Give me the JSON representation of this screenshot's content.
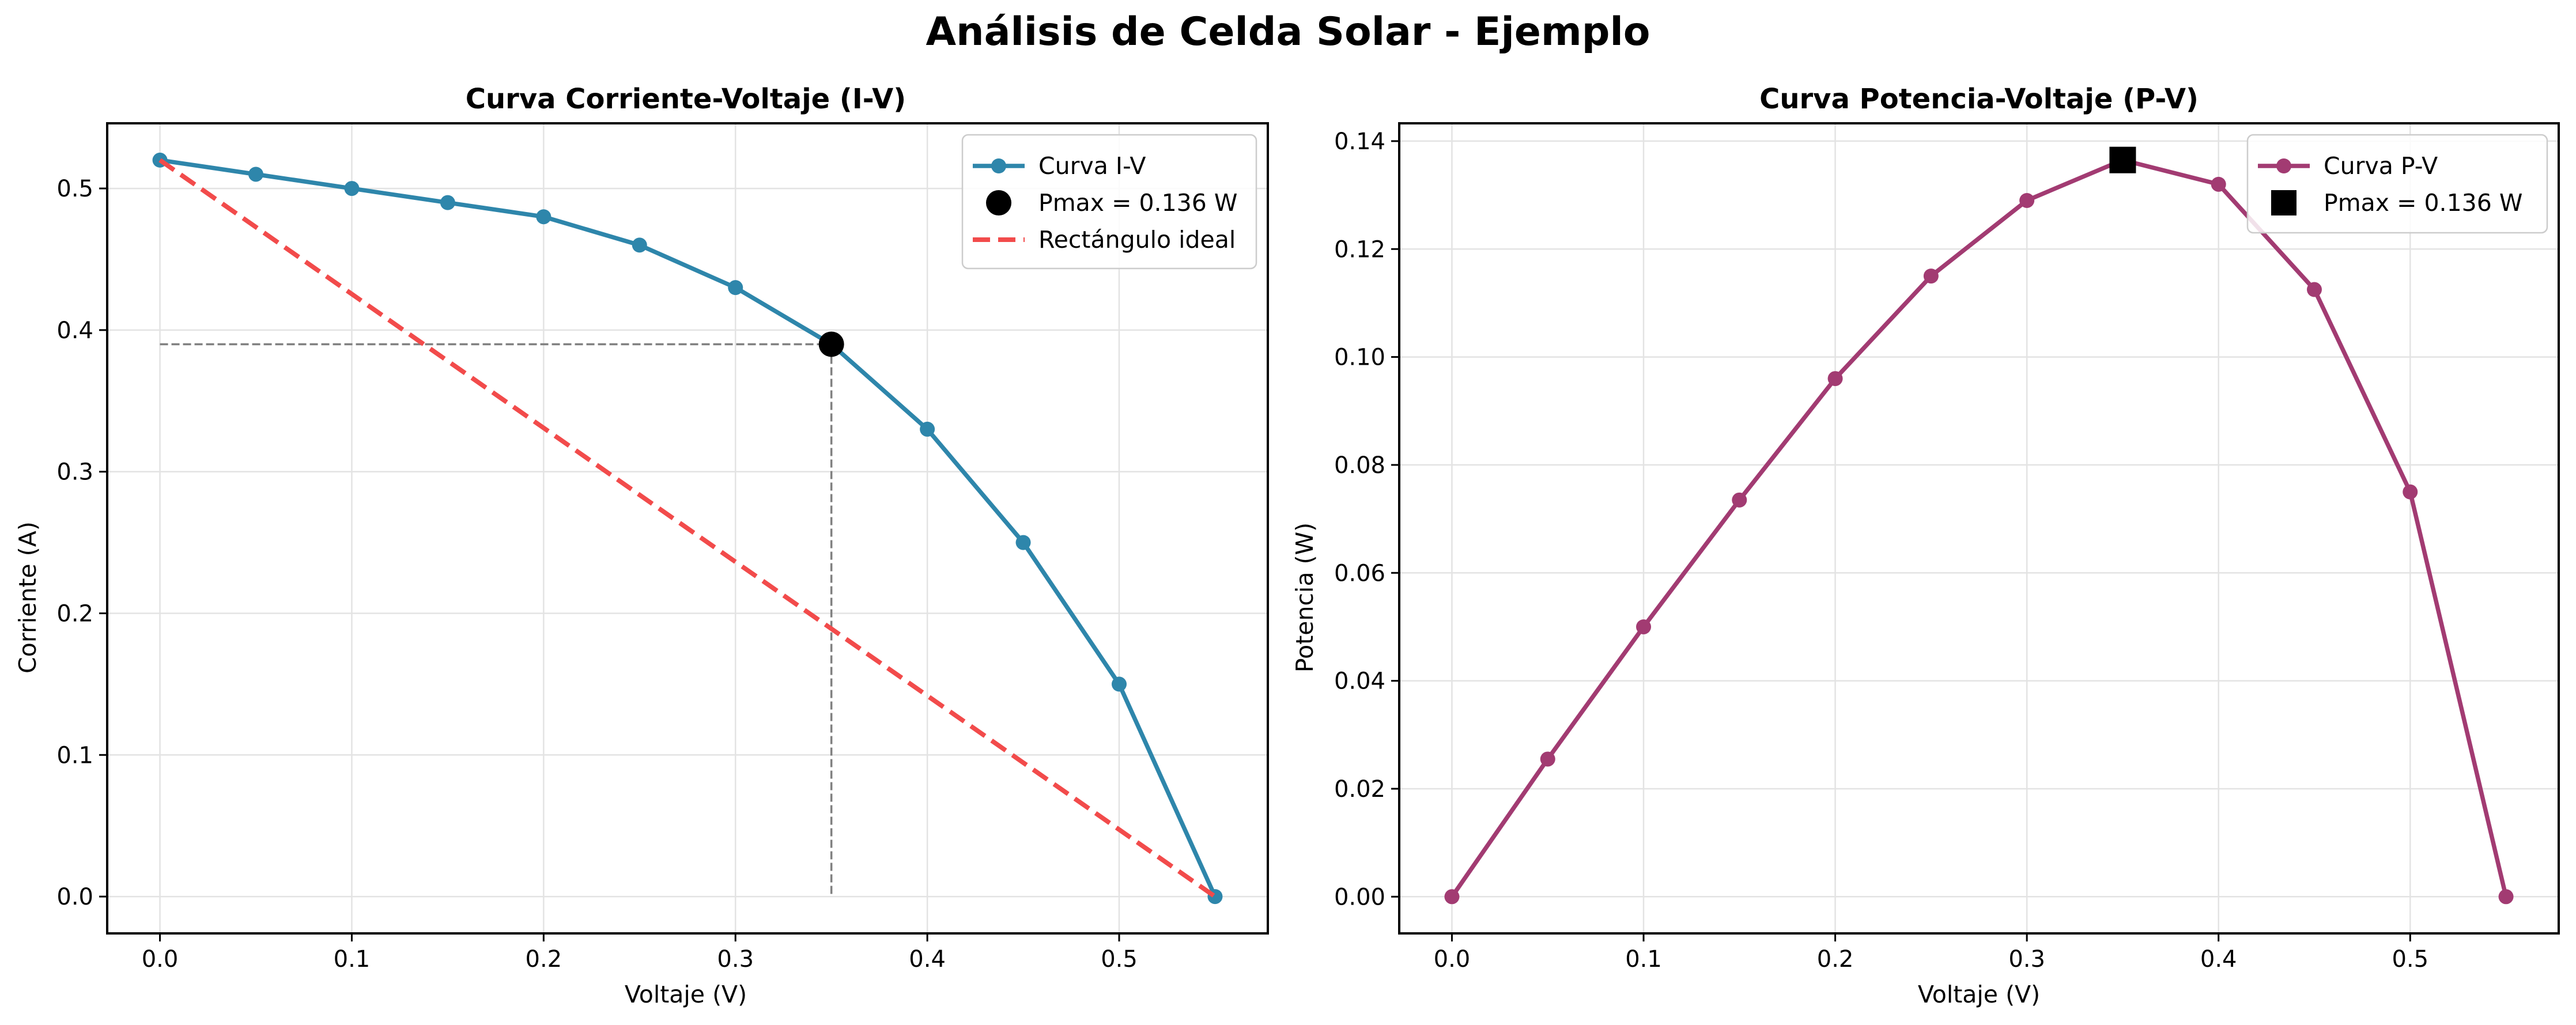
{
  "figure": {
    "title": "Análisis de Celda Solar - Ejemplo"
  },
  "chart_data": [
    {
      "type": "line",
      "title": "Curva Corriente-Voltaje (I-V)",
      "xlabel": "Voltaje (V)",
      "ylabel": "Corriente (A)",
      "xlim": [
        -0.0275,
        0.5775
      ],
      "ylim": [
        -0.026,
        0.546
      ],
      "xticks": [
        0.0,
        0.1,
        0.2,
        0.3,
        0.4,
        0.5
      ],
      "yticks": [
        0.0,
        0.1,
        0.2,
        0.3,
        0.4,
        0.5
      ],
      "grid": true,
      "legend_position": "upper right",
      "series": [
        {
          "name": "Curva I-V",
          "style": "line-marker",
          "color": "#2e86ab",
          "x": [
            0.0,
            0.05,
            0.1,
            0.15,
            0.2,
            0.25,
            0.3,
            0.35,
            0.4,
            0.45,
            0.5,
            0.55
          ],
          "y": [
            0.52,
            0.51,
            0.5,
            0.49,
            0.48,
            0.46,
            0.43,
            0.39,
            0.33,
            0.25,
            0.15,
            0.0
          ]
        },
        {
          "name": "Pmax = 0.136 W",
          "style": "point",
          "marker": "circle",
          "color": "#000000",
          "x": [
            0.35
          ],
          "y": [
            0.39
          ]
        },
        {
          "name": "Rectángulo ideal",
          "style": "dashed",
          "color": "#f24b4b",
          "x": [
            0.0,
            0.55
          ],
          "y": [
            0.52,
            0.0
          ]
        }
      ],
      "guides": [
        {
          "color": "#808080",
          "x": [
            0.0,
            0.35
          ],
          "y": [
            0.39,
            0.39
          ]
        },
        {
          "color": "#808080",
          "x": [
            0.35,
            0.35
          ],
          "y": [
            0.39,
            0.0
          ]
        }
      ]
    },
    {
      "type": "line",
      "title": "Curva Potencia-Voltaje (P-V)",
      "xlabel": "Voltaje (V)",
      "ylabel": "Potencia (W)",
      "xlim": [
        -0.0275,
        0.5775
      ],
      "ylim": [
        -0.0068,
        0.1433
      ],
      "xticks": [
        0.0,
        0.1,
        0.2,
        0.3,
        0.4,
        0.5
      ],
      "yticks": [
        0.0,
        0.02,
        0.04,
        0.06,
        0.08,
        0.1,
        0.12,
        0.14
      ],
      "ytick_decimals": 2,
      "grid": true,
      "legend_position": "upper right",
      "series": [
        {
          "name": "Curva P-V",
          "style": "line-marker",
          "color": "#a23b72",
          "x": [
            0.0,
            0.05,
            0.1,
            0.15,
            0.2,
            0.25,
            0.3,
            0.35,
            0.4,
            0.45,
            0.5,
            0.55
          ],
          "y": [
            0.0,
            0.0255,
            0.05,
            0.0735,
            0.096,
            0.115,
            0.129,
            0.1365,
            0.132,
            0.1125,
            0.075,
            0.0
          ]
        },
        {
          "name": "Pmax = 0.136 W",
          "style": "point",
          "marker": "square",
          "color": "#000000",
          "x": [
            0.35
          ],
          "y": [
            0.1365
          ]
        }
      ],
      "guides": []
    }
  ]
}
